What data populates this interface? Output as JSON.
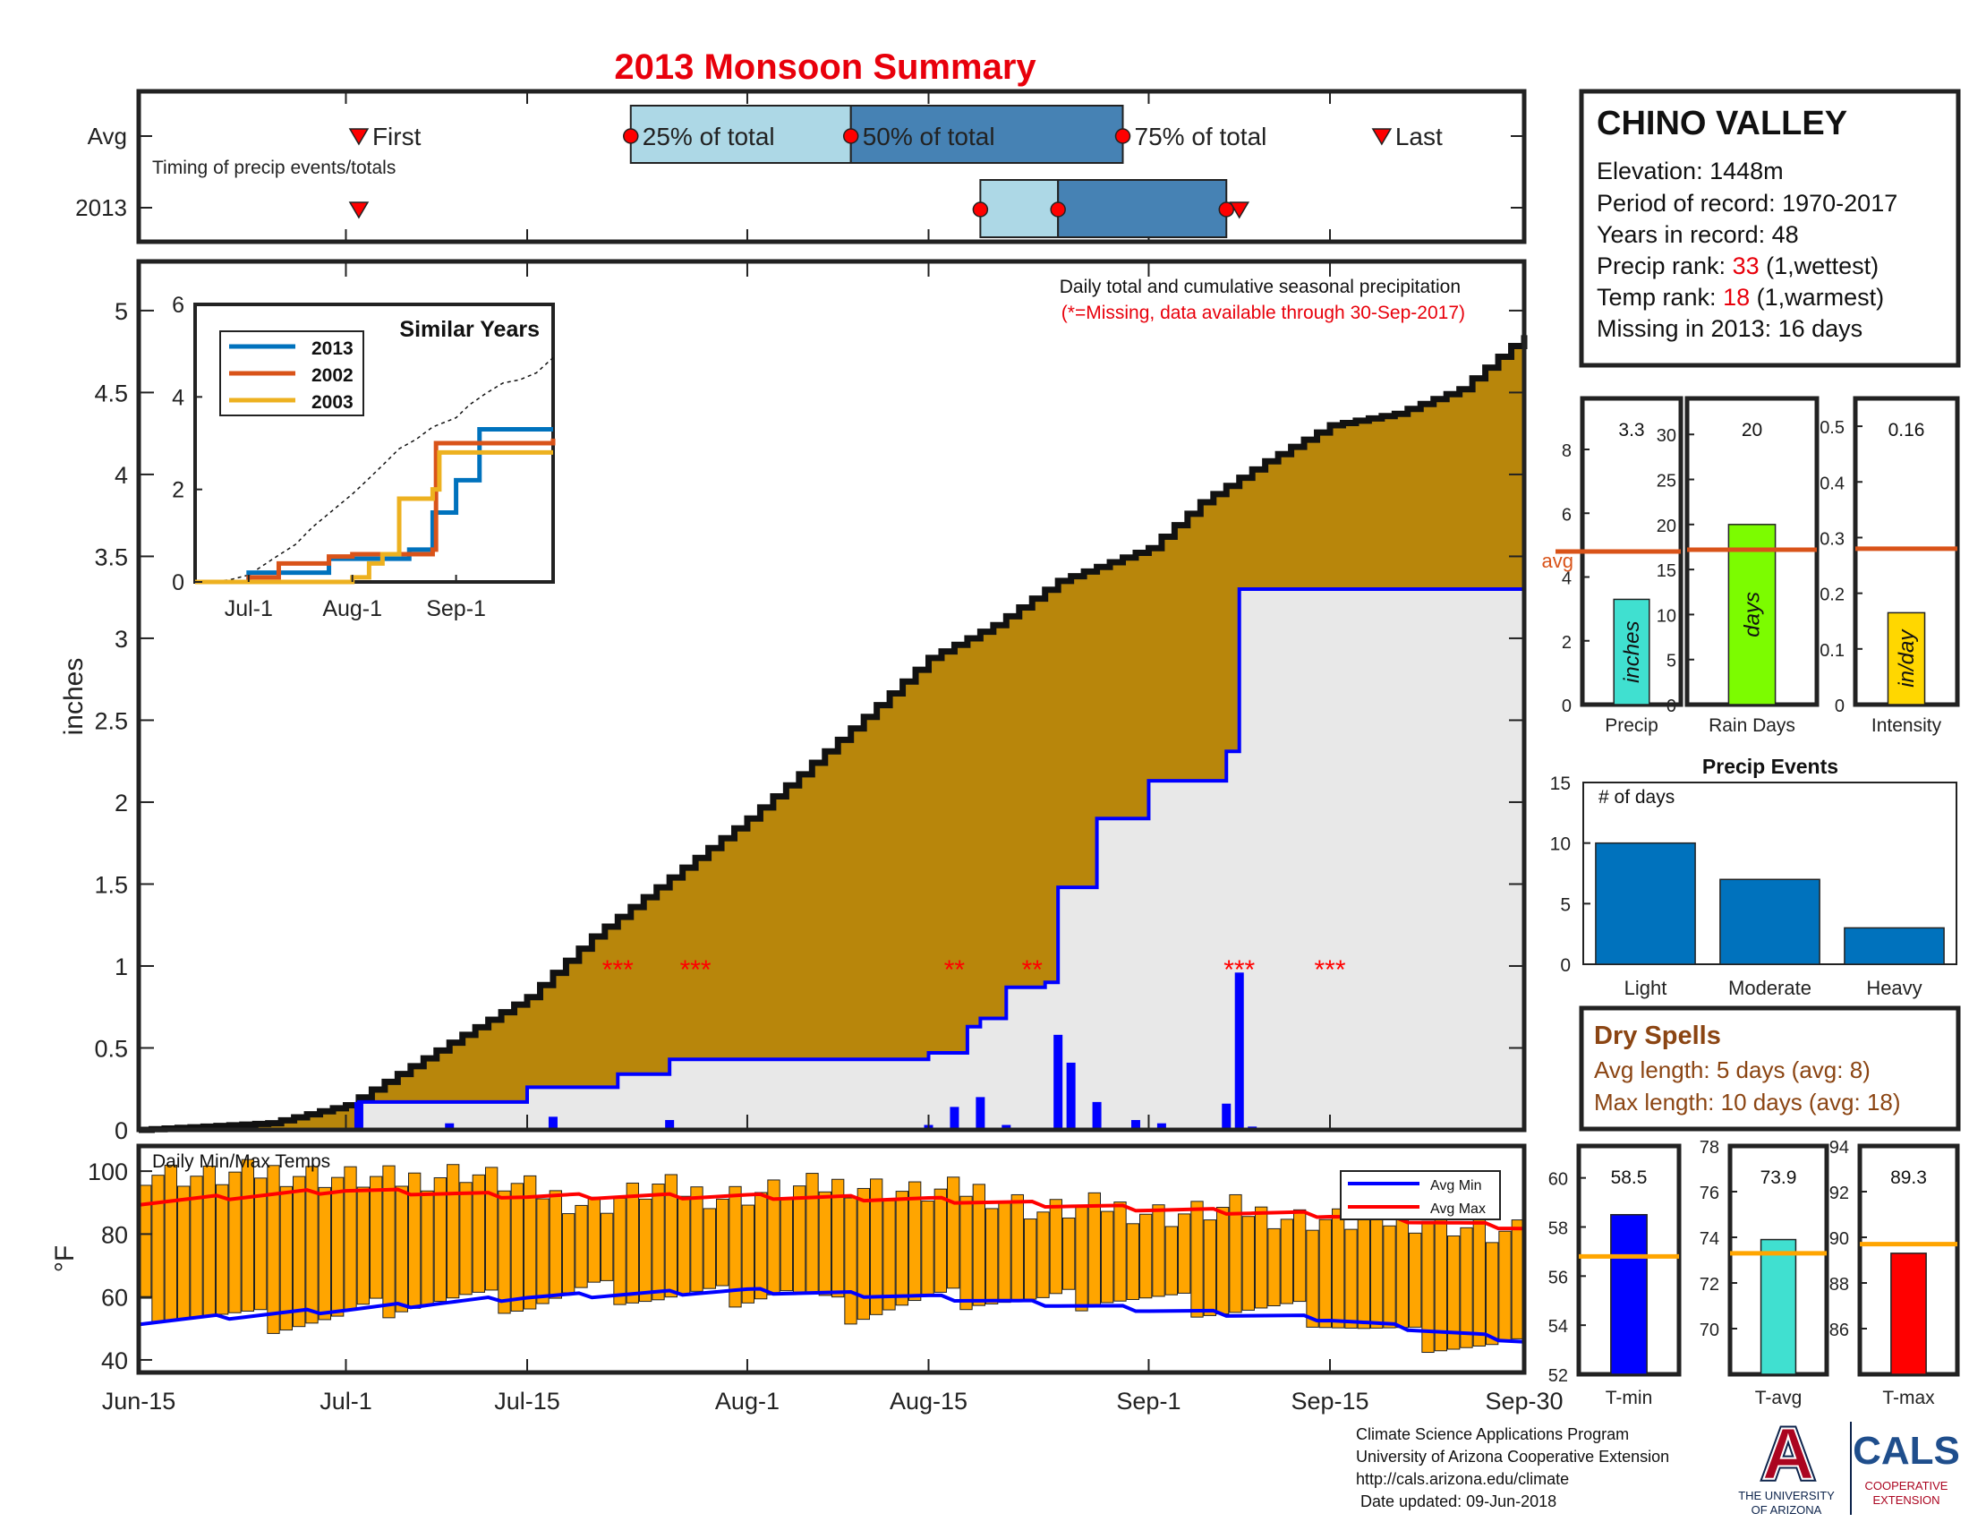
{
  "title": "2013 Monsoon Summary",
  "colors": {
    "title_red": "#e8000b",
    "cum_fill": "#b8860b",
    "gray_fill": "#e8e8e8",
    "blue": "#0000ff",
    "avg_max_red": "#ff0000",
    "temp_bar": "#ffa500",
    "timing_light": "#add8e6",
    "timing_dark": "#4682b4",
    "marker_red": "#ff0000",
    "line_2013": "#0072bd",
    "line_2002": "#d95319",
    "line_2003": "#edb120",
    "avg_line": "#d95319",
    "precip_bar": "#40e0d0",
    "raindays_bar": "#7cfc00",
    "intensity_bar": "#ffd700",
    "events_bar": "#0072bd",
    "tmin_bar": "#0000ff",
    "tavg_bar": "#40e0d0",
    "tmax_bar": "#ff0000",
    "temp_avg_line": "#ffa500",
    "dry_brown": "#8b4513",
    "ua_blue": "#0c234b",
    "ua_red": "#ab0520"
  },
  "timing": {
    "row_labels": [
      "Avg",
      "2013"
    ],
    "subtitle": "Timing of precip events/totals",
    "avg_labels": {
      "first": "First",
      "p25": "25% of total",
      "p50": "50% of total",
      "p75": "75% of total",
      "last": "Last"
    },
    "avg_dates": {
      "first": "2013-07-02",
      "p25": "2013-07-23",
      "p50": "2013-08-09",
      "p75": "2013-08-30",
      "last": "2013-09-19"
    },
    "y2013_dates": {
      "first": "2013-07-02",
      "p25": "2013-08-19",
      "p50": "2013-08-25",
      "p75": "2013-09-07",
      "last": "2013-09-08"
    }
  },
  "station": {
    "name": "CHINO VALLEY",
    "elevation": "Elevation: 1448m",
    "period": "Period of record: 1970-2017",
    "years": "Years in record: 48",
    "precip_rank_label": "Precip rank: ",
    "precip_rank_value": "33",
    "precip_rank_suffix": " (1,wettest)",
    "temp_rank_label": "Temp rank: ",
    "temp_rank_value": "18",
    "temp_rank_suffix": " (1,warmest)",
    "missing": "Missing in 2013: 16 days"
  },
  "main_chart": {
    "annotation": "Daily total and cumulative seasonal precipitation",
    "missing_note": "(*=Missing, data available through 30-Sep-2017)",
    "ylabel": "inches",
    "ylim": [
      0,
      5.3
    ],
    "yticks": [
      "0",
      "0.5",
      "1",
      "1.5",
      "2",
      "2.5",
      "3",
      "3.5",
      "4",
      "4.5",
      "5"
    ],
    "xticks": [
      "Jun-15",
      "Jul-1",
      "Jul-15",
      "Aug-1",
      "Aug-15",
      "Sep-1",
      "Sep-15",
      "Sep-30"
    ],
    "missing_markers": [
      "***",
      "***",
      "**",
      "**",
      "***",
      "***"
    ]
  },
  "inset": {
    "title": "Similar Years",
    "legend": [
      "2013",
      "2002",
      "2003"
    ],
    "yticks": [
      "0",
      "2",
      "4",
      "6"
    ],
    "xticks": [
      "Jul-1",
      "Aug-1",
      "Sep-1"
    ]
  },
  "temp_chart": {
    "title": "Daily Min/Max Temps",
    "ylabel": "°F",
    "yticks": [
      "40",
      "60",
      "80",
      "100"
    ],
    "legend": [
      "Avg Min",
      "Avg Max"
    ]
  },
  "summary_bars": [
    {
      "value": "3.3",
      "ylim": [
        0,
        9.6
      ],
      "yticks": [
        "0",
        "2",
        "4",
        "6",
        "8"
      ],
      "val": 3.3,
      "avg": 4.8,
      "avg_label": "avg",
      "bar_label": "inches",
      "xlabel": "Precip"
    },
    {
      "value": "20",
      "ylim": [
        0,
        34
      ],
      "yticks": [
        "0",
        "5",
        "10",
        "15",
        "20",
        "25",
        "30"
      ],
      "val": 20,
      "avg": 17.2,
      "bar_label": "days",
      "xlabel": "Rain Days"
    },
    {
      "value": "0.16",
      "ylim": [
        0,
        0.55
      ],
      "yticks": [
        "0",
        "0.1",
        "0.2",
        "0.3",
        "0.4",
        "0.5"
      ],
      "val": 0.165,
      "avg": 0.28,
      "bar_label": "in/day",
      "xlabel": "Intensity"
    }
  ],
  "events": {
    "title": "Precip Events",
    "ylabel": "# of days",
    "categories": [
      "Light",
      "Moderate",
      "Heavy"
    ],
    "values": [
      10,
      7,
      3
    ],
    "yticks": [
      "0",
      "5",
      "10",
      "15"
    ]
  },
  "dry_spells": {
    "title": "Dry Spells",
    "avg_length": "Avg length: 5 days (avg: 8)",
    "max_length": "Max length: 10 days (avg: 18)"
  },
  "temp_summary": [
    {
      "value": "58.5",
      "ylim": [
        52,
        61.3
      ],
      "yticks": [
        "52",
        "54",
        "56",
        "58",
        "60"
      ],
      "val": 58.5,
      "avg": 56.8,
      "xlabel": "T-min"
    },
    {
      "value": "73.9",
      "ylim": [
        68,
        78
      ],
      "yticks": [
        "70",
        "72",
        "74",
        "76",
        "78"
      ],
      "val": 73.9,
      "avg": 73.3,
      "xlabel": "T-avg"
    },
    {
      "value": "89.3",
      "ylim": [
        84,
        94
      ],
      "yticks": [
        "86",
        "88",
        "90",
        "92",
        "94"
      ],
      "val": 89.3,
      "avg": 89.7,
      "xlabel": "T-max"
    }
  ],
  "footer": {
    "line1": "Climate Science Applications Program",
    "line2": "University of Arizona Cooperative Extension",
    "line3": "http://cals.arizona.edu/climate",
    "line4": " Date updated: 09-Jun-2018",
    "ua_letter": "A",
    "ua_name1": "THE UNIVERSITY",
    "ua_name2": "OF ARIZONA",
    "cals": "CALS",
    "coop1": "COOPERATIVE",
    "coop2": "EXTENSION"
  },
  "chart_data": [
    {
      "type": "area",
      "title": "Daily total and cumulative seasonal precipitation",
      "xlabel": "",
      "ylabel": "inches",
      "x_range": [
        "2013-06-15",
        "2013-09-30"
      ],
      "ylim": [
        0,
        5.3
      ],
      "series": [
        {
          "name": "cumulative average",
          "x": [
            "2013-06-15",
            "2013-06-25",
            "2013-07-01",
            "2013-07-10",
            "2013-07-15",
            "2013-07-20",
            "2013-07-25",
            "2013-08-01",
            "2013-08-05",
            "2013-08-10",
            "2013-08-15",
            "2013-08-20",
            "2013-08-25",
            "2013-09-01",
            "2013-09-05",
            "2013-09-10",
            "2013-09-15",
            "2013-09-20",
            "2013-09-25",
            "2013-09-30"
          ],
          "values": [
            0.0,
            0.04,
            0.15,
            0.58,
            0.81,
            1.18,
            1.48,
            1.9,
            2.17,
            2.52,
            2.88,
            3.08,
            3.35,
            3.55,
            3.83,
            4.08,
            4.3,
            4.37,
            4.52,
            4.85
          ]
        },
        {
          "name": "2013 cumulative",
          "x": [
            "2013-06-15",
            "2013-07-01",
            "2013-07-02",
            "2013-07-15",
            "2013-07-22",
            "2013-07-26",
            "2013-08-15",
            "2013-08-18",
            "2013-08-19",
            "2013-08-21",
            "2013-08-24",
            "2013-08-25",
            "2013-08-28",
            "2013-09-01",
            "2013-09-07",
            "2013-09-08",
            "2013-09-30"
          ],
          "values": [
            0.0,
            0.0,
            0.17,
            0.26,
            0.34,
            0.43,
            0.47,
            0.63,
            0.68,
            0.87,
            0.9,
            1.48,
            1.9,
            2.13,
            2.31,
            3.3,
            3.3
          ]
        },
        {
          "name": "2013 daily",
          "x": [
            "2013-07-02",
            "2013-07-09",
            "2013-07-17",
            "2013-07-26",
            "2013-08-15",
            "2013-08-17",
            "2013-08-19",
            "2013-08-21",
            "2013-08-25",
            "2013-08-26",
            "2013-08-28",
            "2013-08-31",
            "2013-09-02",
            "2013-09-07",
            "2013-09-08",
            "2013-09-09"
          ],
          "values": [
            0.17,
            0.04,
            0.08,
            0.06,
            0.03,
            0.14,
            0.2,
            0.03,
            0.58,
            0.41,
            0.17,
            0.06,
            0.04,
            0.16,
            0.96,
            0.02
          ]
        }
      ]
    },
    {
      "type": "line",
      "title": "Similar Years",
      "x_range": [
        "2013-06-15",
        "2013-09-30"
      ],
      "ylim": [
        0,
        6
      ],
      "series": [
        {
          "name": "2013",
          "x": [
            "2013-06-15",
            "2013-07-01",
            "2013-07-25",
            "2013-08-18",
            "2013-08-25",
            "2013-09-01",
            "2013-09-08",
            "2013-09-30"
          ],
          "values": [
            0,
            0.2,
            0.5,
            0.7,
            1.5,
            2.2,
            3.3,
            3.3
          ]
        },
        {
          "name": "2002",
          "x": [
            "2013-06-15",
            "2013-07-01",
            "2013-07-10",
            "2013-07-25",
            "2013-08-01",
            "2013-08-25",
            "2013-08-26",
            "2013-09-30"
          ],
          "values": [
            0,
            0.1,
            0.4,
            0.55,
            0.6,
            0.7,
            3.0,
            3.1
          ]
        },
        {
          "name": "2003",
          "x": [
            "2013-06-15",
            "2013-07-25",
            "2013-08-01",
            "2013-08-06",
            "2013-08-10",
            "2013-08-15",
            "2013-08-25",
            "2013-08-27",
            "2013-09-30"
          ],
          "values": [
            0,
            0,
            0.1,
            0.4,
            0.6,
            1.8,
            2.0,
            2.8,
            2.8
          ]
        }
      ]
    },
    {
      "type": "bar",
      "title": "Daily Min/Max Temps",
      "ylabel": "°F",
      "x_range": [
        "2013-06-15",
        "2013-09-30"
      ],
      "ylim": [
        36,
        108
      ],
      "series": [
        {
          "name": "daily max (every 5th day)",
          "x": [
            "2013-06-15",
            "2013-06-20",
            "2013-06-25",
            "2013-06-30",
            "2013-07-05",
            "2013-07-10",
            "2013-07-15",
            "2013-07-20",
            "2013-07-25",
            "2013-07-30",
            "2013-08-04",
            "2013-08-09",
            "2013-08-14",
            "2013-08-19",
            "2013-08-24",
            "2013-08-29",
            "2013-09-03",
            "2013-09-08",
            "2013-09-13",
            "2013-09-18",
            "2013-09-23",
            "2013-09-28"
          ],
          "values": [
            100,
            98,
            100,
            98,
            97,
            100,
            94,
            89,
            95,
            92,
            94,
            96,
            93,
            94,
            87,
            89,
            86,
            88,
            85,
            84,
            85,
            80
          ]
        },
        {
          "name": "daily min (every 5th day)",
          "x": [
            "2013-06-15",
            "2013-06-20",
            "2013-06-25",
            "2013-06-30",
            "2013-07-05",
            "2013-07-10",
            "2013-07-15",
            "2013-07-20",
            "2013-07-25",
            "2013-07-30",
            "2013-08-04",
            "2013-08-09",
            "2013-08-14",
            "2013-08-19",
            "2013-08-24",
            "2013-08-29",
            "2013-09-03",
            "2013-09-08",
            "2013-09-13",
            "2013-09-18",
            "2013-09-23",
            "2013-09-28"
          ],
          "values": [
            56,
            54,
            52,
            53,
            58,
            59,
            58,
            62,
            60,
            60,
            62,
            55,
            58,
            60,
            58,
            60,
            58,
            56,
            55,
            50,
            46,
            44
          ]
        },
        {
          "name": "Avg Min",
          "x": [
            "2013-06-15",
            "2013-07-01",
            "2013-07-15",
            "2013-08-01",
            "2013-08-15",
            "2013-09-01",
            "2013-09-15",
            "2013-09-30"
          ],
          "values": [
            52,
            56,
            60,
            62,
            60,
            56,
            53,
            46
          ]
        },
        {
          "name": "Avg Max",
          "x": [
            "2013-06-15",
            "2013-07-01",
            "2013-07-15",
            "2013-08-01",
            "2013-08-15",
            "2013-09-01",
            "2013-09-15",
            "2013-09-30"
          ],
          "values": [
            90,
            94,
            92,
            92,
            91,
            88,
            86,
            82
          ]
        }
      ]
    },
    {
      "type": "bar",
      "categories": [
        "Precip"
      ],
      "values": [
        3.3
      ],
      "average": 4.8,
      "ylim": [
        0,
        9.6
      ],
      "xlabel": "Precip"
    },
    {
      "type": "bar",
      "categories": [
        "Rain Days"
      ],
      "values": [
        20
      ],
      "average": 17.2,
      "ylim": [
        0,
        34
      ],
      "xlabel": "Rain Days"
    },
    {
      "type": "bar",
      "categories": [
        "Intensity"
      ],
      "values": [
        0.16
      ],
      "average": 0.28,
      "ylim": [
        0,
        0.55
      ],
      "xlabel": "Intensity"
    },
    {
      "type": "bar",
      "title": "Precip Events",
      "ylabel": "# of days",
      "categories": [
        "Light",
        "Moderate",
        "Heavy"
      ],
      "values": [
        10,
        7,
        3
      ],
      "ylim": [
        0,
        15
      ]
    },
    {
      "type": "bar",
      "categories": [
        "T-min"
      ],
      "values": [
        58.5
      ],
      "average": 56.8,
      "ylim": [
        52,
        61.3
      ],
      "xlabel": "T-min"
    },
    {
      "type": "bar",
      "categories": [
        "T-avg"
      ],
      "values": [
        73.9
      ],
      "average": 73.3,
      "ylim": [
        68,
        78
      ],
      "xlabel": "T-avg"
    },
    {
      "type": "bar",
      "categories": [
        "T-max"
      ],
      "values": [
        89.3
      ],
      "average": 89.7,
      "ylim": [
        84,
        94
      ],
      "xlabel": "T-max"
    }
  ]
}
